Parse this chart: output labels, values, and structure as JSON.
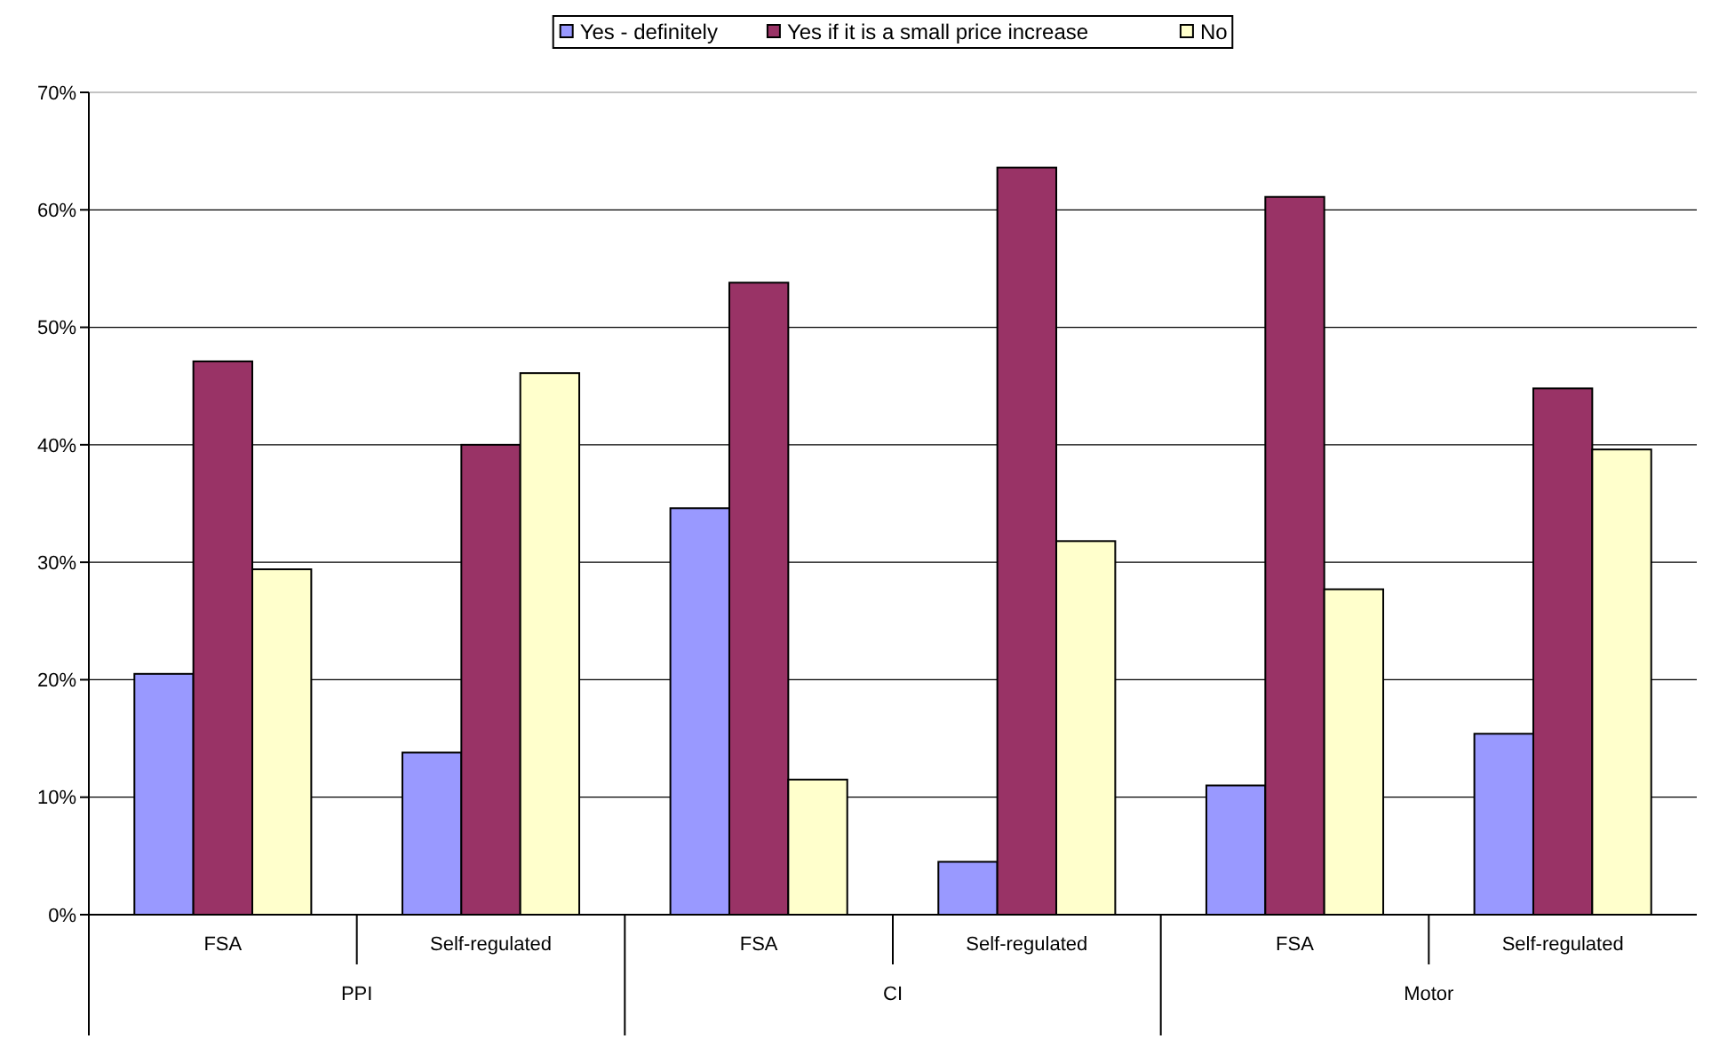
{
  "chart_data": {
    "type": "bar",
    "categories": [
      "FSA",
      "Self-regulated",
      "FSA",
      "Self-regulated",
      "FSA",
      "Self-regulated"
    ],
    "series": [
      {
        "name": "Yes - definitely",
        "color": "#9999ff",
        "values": [
          20.5,
          13.8,
          34.6,
          4.5,
          11.0,
          15.4
        ]
      },
      {
        "name": "Yes if it is a small price increase",
        "color": "#993366",
        "values": [
          47.1,
          40.0,
          53.8,
          63.6,
          61.1,
          44.8
        ]
      },
      {
        "name": "No",
        "color": "#ffffcc",
        "values": [
          29.4,
          46.1,
          11.5,
          31.8,
          27.7,
          39.6
        ]
      }
    ],
    "ylim": [
      0,
      70
    ],
    "yticks": [
      {
        "value": 0,
        "label": "0%"
      },
      {
        "value": 10,
        "label": "10%"
      },
      {
        "value": 20,
        "label": "20%"
      },
      {
        "value": 30,
        "label": "30%"
      },
      {
        "value": 40,
        "label": "40%"
      },
      {
        "value": 50,
        "label": "50%"
      },
      {
        "value": 60,
        "label": "60%"
      },
      {
        "value": 70,
        "label": "70%"
      }
    ],
    "annotations": [
      "PPI",
      "CI",
      "Motor"
    ],
    "grid": "y",
    "legend": "top"
  }
}
